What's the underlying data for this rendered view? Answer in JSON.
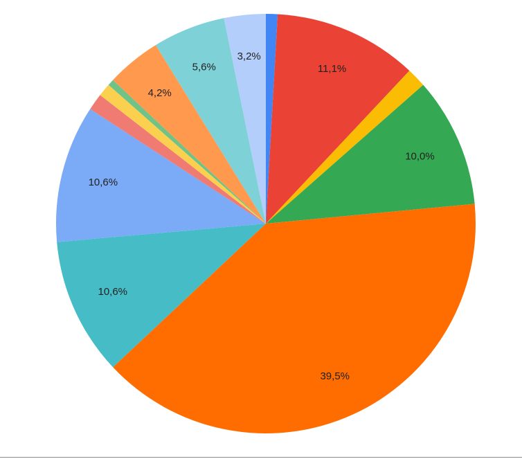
{
  "chart_data": {
    "type": "pie",
    "values": [
      0.9,
      11.1,
      1.5,
      10.0,
      39.5,
      10.6,
      10.6,
      1.3,
      1.0,
      0.5,
      4.2,
      5.6,
      3.2
    ],
    "value_labels": [
      null,
      "11,1%",
      null,
      "10,0%",
      "39,5%",
      "10,6%",
      "10,6%",
      null,
      null,
      null,
      "4,2%",
      "5,6%",
      "3,2%"
    ],
    "colors": [
      "#4285f4",
      "#ea4335",
      "#fbbc04",
      "#34a853",
      "#ff6d01",
      "#46bdc6",
      "#7baaf7",
      "#f07b72",
      "#fcd04f",
      "#71c287",
      "#ff994d",
      "#7ed1d7",
      "#b3cefb"
    ]
  }
}
